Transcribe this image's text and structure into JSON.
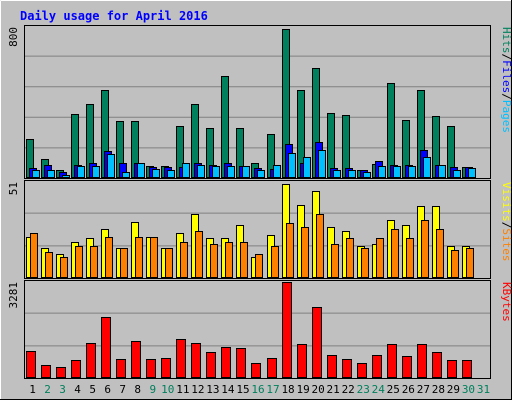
{
  "colors": {
    "background": "#c0c0c0",
    "title": "#0000ff",
    "hits": "#00805c",
    "files": "#0000ff",
    "pages": "#00c0ff",
    "visits": "#ffff00",
    "sites": "#ff8000",
    "kbytes": "#ff0000",
    "weekday_label": "#000000",
    "weekend_label": "#00805c"
  },
  "chart_data": {
    "type": "bar",
    "title": "Daily usage for April 2016",
    "categories": [
      "1",
      "2",
      "3",
      "4",
      "5",
      "6",
      "7",
      "8",
      "9",
      "10",
      "11",
      "12",
      "13",
      "14",
      "15",
      "16",
      "17",
      "18",
      "19",
      "20",
      "21",
      "22",
      "23",
      "24",
      "25",
      "26",
      "27",
      "28",
      "29",
      "30",
      "31"
    ],
    "weekend_days": [
      "2",
      "3",
      "9",
      "10",
      "16",
      "17",
      "23",
      "24",
      "30",
      "31"
    ],
    "panels": [
      {
        "ylabel_max": "800",
        "ylim": [
          0,
          800
        ],
        "legend": [
          "Pages",
          "Files",
          "Hits"
        ],
        "legend_separator": "/",
        "series": [
          {
            "name": "Hits",
            "color_key": "hits",
            "values": [
              205,
              100,
              40,
              340,
              390,
              465,
              300,
              300,
              65,
              65,
              275,
              390,
              265,
              540,
              265,
              80,
              235,
              790,
              465,
              585,
              345,
              335,
              40,
              75,
              505,
              305,
              465,
              330,
              275,
              60,
              0
            ]
          },
          {
            "name": "Files",
            "color_key": "files",
            "values": [
              55,
              70,
              30,
              70,
              80,
              145,
              80,
              80,
              60,
              60,
              60,
              80,
              70,
              80,
              65,
              55,
              50,
              180,
              80,
              190,
              55,
              55,
              40,
              90,
              70,
              70,
              150,
              70,
              60,
              60,
              0
            ]
          },
          {
            "name": "Pages",
            "color_key": "pages",
            "values": [
              45,
              45,
              15,
              65,
              65,
              125,
              30,
              80,
              50,
              45,
              80,
              70,
              65,
              65,
              65,
              40,
              70,
              135,
              110,
              150,
              45,
              45,
              30,
              65,
              65,
              65,
              110,
              70,
              40,
              55,
              0
            ]
          }
        ]
      },
      {
        "ylabel_max": "51",
        "ylim": [
          0,
          51
        ],
        "legend": [
          "Sites",
          "Visits"
        ],
        "legend_separator": "/",
        "series": [
          {
            "name": "Visits",
            "color_key": "visits",
            "values": [
              22,
              16,
              13,
              19,
              21,
              26,
              16,
              30,
              22,
              16,
              24,
              34,
              21,
              21,
              28,
              11,
              23,
              50,
              39,
              46,
              27,
              25,
              17,
              18,
              31,
              28,
              38,
              38,
              17,
              17,
              0
            ]
          },
          {
            "name": "Sites",
            "color_key": "sites",
            "values": [
              24,
              14,
              11,
              17,
              17,
              22,
              16,
              22,
              22,
              16,
              19,
              25,
              18,
              19,
              19,
              13,
              17,
              29,
              27,
              34,
              18,
              21,
              16,
              21,
              26,
              21,
              31,
              26,
              15,
              16,
              0
            ]
          }
        ]
      },
      {
        "ylabel_max": "3281",
        "ylim": [
          0,
          3281
        ],
        "legend": [
          "KBytes"
        ],
        "legend_separator": "/",
        "series": [
          {
            "name": "KBytes",
            "color_key": "kbytes",
            "values": [
              930,
              440,
              380,
              600,
              1200,
              2070,
              660,
              1250,
              650,
              680,
              1330,
              1180,
              900,
              1070,
              1040,
              500,
              700,
              3281,
              1160,
              2440,
              780,
              660,
              510,
              780,
              1160,
              750,
              1160,
              880,
              600,
              630,
              0
            ]
          }
        ]
      }
    ]
  }
}
